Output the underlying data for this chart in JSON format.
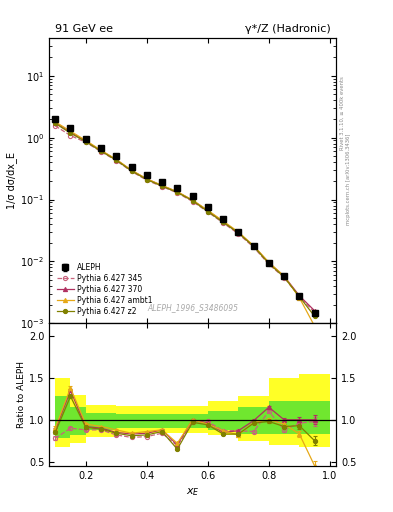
{
  "title_left": "91 GeV ee",
  "title_right": "γ*/Z (Hadronic)",
  "ylabel_main": "1/σ dσ/dx_E",
  "ylabel_ratio": "Ratio to ALEPH",
  "xlabel": "x_E",
  "right_label_top": "Rivet 3.1.10, ≥ 400k events",
  "right_label_bottom": "mcplots.cern.ch [arXiv:1306.3436]",
  "watermark": "ALEPH_1996_S3486095",
  "xE": [
    0.1,
    0.15,
    0.2,
    0.25,
    0.3,
    0.35,
    0.4,
    0.45,
    0.5,
    0.55,
    0.6,
    0.65,
    0.7,
    0.75,
    0.8,
    0.85,
    0.9,
    0.95
  ],
  "aleph_y": [
    2.0,
    1.45,
    0.95,
    0.68,
    0.5,
    0.34,
    0.245,
    0.195,
    0.155,
    0.115,
    0.075,
    0.049,
    0.03,
    0.018,
    0.0095,
    0.0058,
    0.0028,
    0.0015
  ],
  "aleph_yerr": [
    0.06,
    0.04,
    0.025,
    0.018,
    0.012,
    0.008,
    0.006,
    0.005,
    0.004,
    0.003,
    0.002,
    0.0015,
    0.001,
    0.0008,
    0.0005,
    0.0003,
    0.00015,
    0.0001
  ],
  "p345_y": [
    1.55,
    1.08,
    0.84,
    0.595,
    0.425,
    0.285,
    0.205,
    0.162,
    0.128,
    0.093,
    0.063,
    0.042,
    0.028,
    0.017,
    0.009,
    0.0055,
    0.0027,
    0.0015
  ],
  "p370_y": [
    1.75,
    1.22,
    0.88,
    0.615,
    0.44,
    0.295,
    0.215,
    0.168,
    0.133,
    0.097,
    0.066,
    0.044,
    0.029,
    0.0178,
    0.0095,
    0.0058,
    0.0028,
    0.0016
  ],
  "pambt1_y": [
    1.8,
    1.27,
    0.9,
    0.625,
    0.445,
    0.298,
    0.216,
    0.169,
    0.134,
    0.098,
    0.067,
    0.045,
    0.03,
    0.018,
    0.0097,
    0.0058,
    0.0026,
    0.0009
  ],
  "pz2_y": [
    1.7,
    1.18,
    0.86,
    0.605,
    0.432,
    0.29,
    0.21,
    0.165,
    0.13,
    0.096,
    0.064,
    0.043,
    0.029,
    0.0175,
    0.0093,
    0.0056,
    0.0027,
    0.0013
  ],
  "ratio_345": [
    0.78,
    0.9,
    0.88,
    0.88,
    0.82,
    0.79,
    0.8,
    0.84,
    0.69,
    0.97,
    0.98,
    0.87,
    0.87,
    0.86,
    1.1,
    0.88,
    0.96,
    0.98
  ],
  "ratio_370": [
    0.88,
    1.35,
    0.92,
    0.9,
    0.85,
    0.83,
    0.84,
    0.88,
    0.7,
    1.0,
    0.96,
    0.85,
    0.87,
    0.99,
    1.15,
    1.0,
    1.0,
    1.0
  ],
  "ratio_ambt1": [
    0.9,
    1.38,
    0.95,
    0.92,
    0.88,
    0.84,
    0.86,
    0.88,
    0.72,
    1.0,
    0.95,
    0.87,
    0.82,
    0.97,
    1.0,
    0.95,
    0.83,
    0.45
  ],
  "ratio_z2": [
    0.85,
    1.28,
    0.91,
    0.89,
    0.84,
    0.81,
    0.82,
    0.86,
    0.65,
    0.97,
    0.94,
    0.83,
    0.83,
    0.96,
    0.98,
    0.92,
    0.93,
    0.75
  ],
  "ratio_345_err": [
    0.025,
    0.02,
    0.015,
    0.012,
    0.01,
    0.009,
    0.008,
    0.007,
    0.01,
    0.008,
    0.009,
    0.01,
    0.012,
    0.015,
    0.02,
    0.025,
    0.035,
    0.055
  ],
  "ratio_370_err": [
    0.025,
    0.02,
    0.015,
    0.012,
    0.01,
    0.009,
    0.008,
    0.007,
    0.01,
    0.008,
    0.009,
    0.01,
    0.012,
    0.015,
    0.02,
    0.025,
    0.035,
    0.055
  ],
  "ratio_ambt1_err": [
    0.025,
    0.02,
    0.015,
    0.012,
    0.01,
    0.009,
    0.008,
    0.007,
    0.01,
    0.008,
    0.009,
    0.01,
    0.012,
    0.015,
    0.02,
    0.025,
    0.035,
    0.055
  ],
  "ratio_z2_err": [
    0.025,
    0.02,
    0.015,
    0.012,
    0.01,
    0.009,
    0.008,
    0.007,
    0.01,
    0.008,
    0.009,
    0.01,
    0.012,
    0.015,
    0.02,
    0.025,
    0.035,
    0.055
  ],
  "band_x_edges": [
    0.1,
    0.15,
    0.2,
    0.3,
    0.4,
    0.5,
    0.6,
    0.7,
    0.8,
    0.9,
    1.0
  ],
  "band_yellow_lo": [
    0.68,
    0.72,
    0.8,
    0.84,
    0.84,
    0.84,
    0.82,
    0.75,
    0.7,
    0.68
  ],
  "band_yellow_hi": [
    1.5,
    1.3,
    1.18,
    1.16,
    1.16,
    1.16,
    1.22,
    1.28,
    1.5,
    1.55
  ],
  "band_green_lo": [
    0.78,
    0.82,
    0.88,
    0.9,
    0.9,
    0.9,
    0.88,
    0.83,
    0.83,
    0.83
  ],
  "band_green_hi": [
    1.28,
    1.15,
    1.08,
    1.07,
    1.07,
    1.07,
    1.1,
    1.15,
    1.22,
    1.22
  ],
  "color_345": "#c8627c",
  "color_370": "#b03060",
  "color_ambt1": "#e6a817",
  "color_z2": "#808000",
  "xlim": [
    0.08,
    1.02
  ],
  "ylim_main": [
    0.001,
    40
  ],
  "ylim_ratio": [
    0.45,
    2.15
  ],
  "ratio_yticks": [
    0.5,
    1.0,
    1.5,
    2.0
  ]
}
